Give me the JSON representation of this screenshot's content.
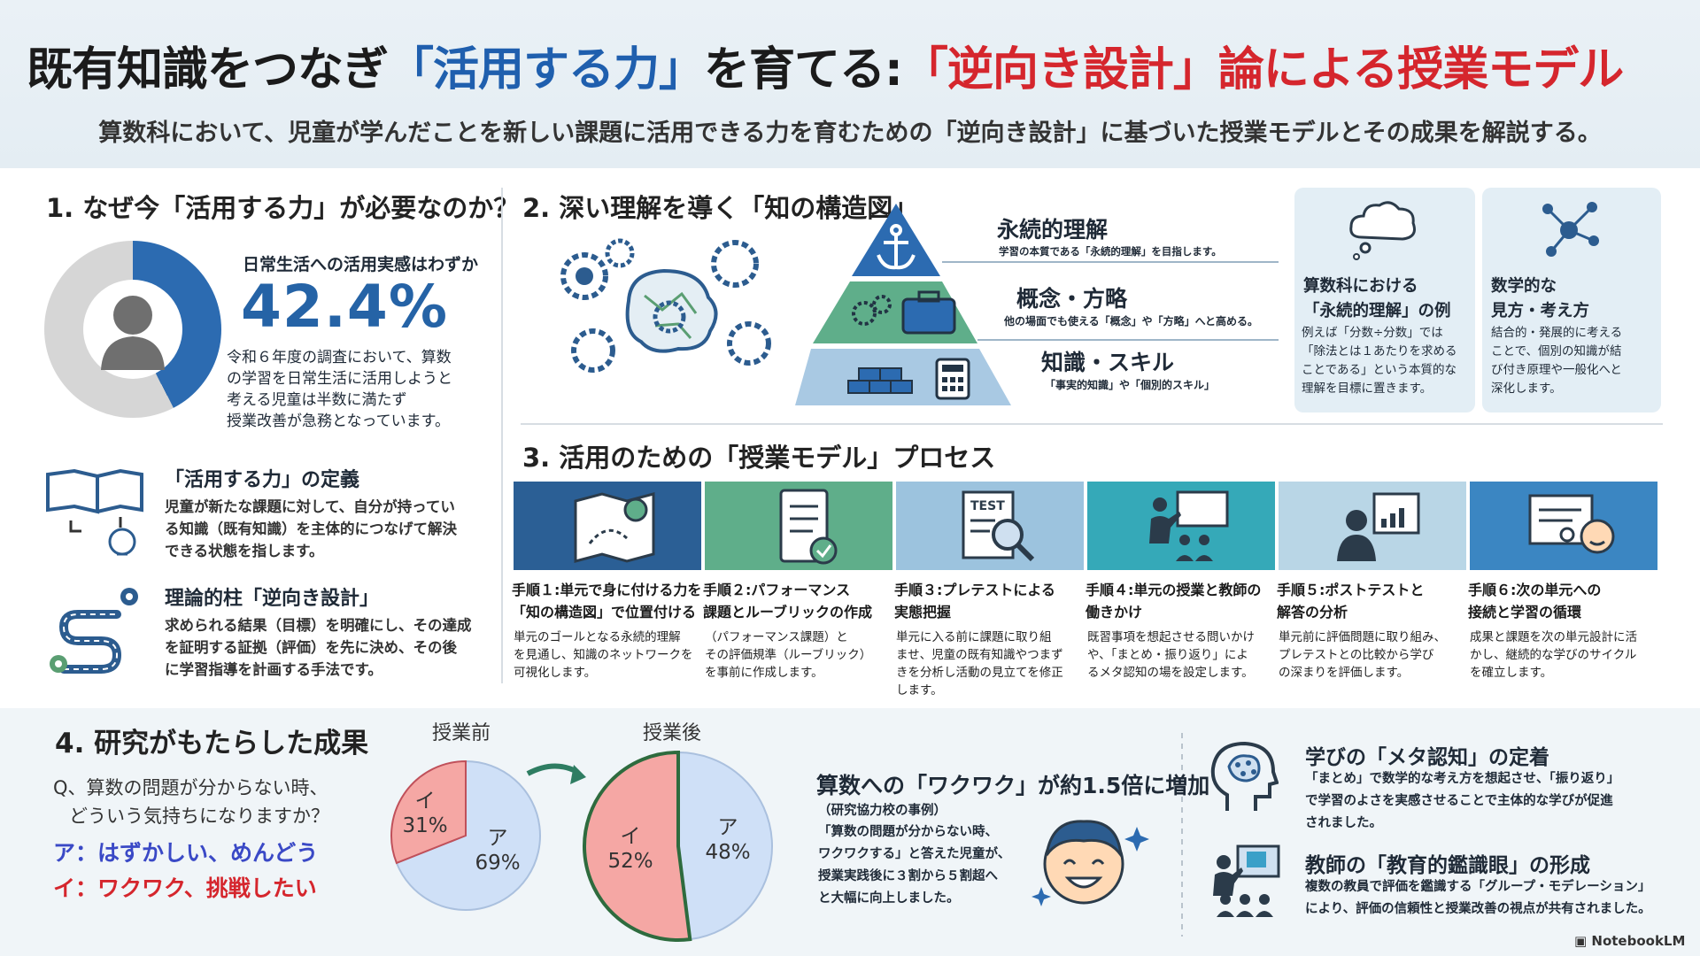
{
  "header": {
    "title_part1": "既有知識をつなぎ",
    "title_part2": "「活用する力」",
    "title_part3": "を育てる:",
    "title_part4": "「逆向き設計」",
    "title_part5": "論による授業モデル",
    "subtitle": "算数科において、児童が学んだことを新しい課題に活用できる力を育むための「逆向き設計」に基づいた授業モデルとその成果を解説する。"
  },
  "section1": {
    "heading": "1. なぜ今「活用する力」が必要なのか？",
    "stat_caption": "日常生活への活用実感はわずか",
    "stat_value": "42.4%",
    "stat_fraction": 0.424,
    "stat_text": [
      "令和６年度の調査において、算数",
      "の学習を日常生活に活用しようと",
      "考える児童は半数に満たず",
      "授業改善が急務となっています。"
    ],
    "definition_title": "「活用する力」の定義",
    "definition_text": [
      "児童が新たな課題に対して、自分が持ってい",
      "る知識（既有知識）を主体的につなげて解決",
      "できる状態を指します。"
    ],
    "theory_title": "理論的柱「逆向き設計」",
    "theory_text": [
      "求められる結果（目標）を明確にし、その達成",
      "を証明する証拠（評価）を先に決め、その後",
      "に学習指導を計画する手法です。"
    ]
  },
  "section2": {
    "heading": "2. 深い理解を導く「知の構造図」",
    "levels": [
      {
        "title": "永続的理解",
        "desc": "学習の本質である「永続的理解」を目指します。"
      },
      {
        "title": "概念・方略",
        "desc": "他の場面でも使える「概念」や「方略」へと高める。"
      },
      {
        "title": "知識・スキル",
        "desc": "「事実的知識」や「個別的スキル」"
      }
    ],
    "card1_title": [
      "算数科における",
      "「永続的理解」の例"
    ],
    "card1_text": [
      "例えば「分数÷分数」では",
      "「除法とは１あたりを求める",
      "ことである」という本質的な",
      "理解を目標に置きます。"
    ],
    "card2_title": [
      "数学的な",
      "見方・考え方"
    ],
    "card2_text": [
      "結合的・発展的に考える",
      "ことで、個別の知識が結",
      "び付き原理や一般化へと",
      "深化します。"
    ]
  },
  "section3": {
    "heading": "3. 活用のための「授業モデル」プロセス",
    "steps": [
      {
        "title": [
          "手順１:単元で身に付ける力を",
          "「知の構造図」で位置付ける"
        ],
        "body": [
          "単元のゴールとなる永続的理解",
          "を見通し、知識のネットワークを",
          "可視化します。"
        ],
        "color": "#2b5f95"
      },
      {
        "title": [
          "手順２:パフォーマンス",
          "課題とルーブリックの作成"
        ],
        "body": [
          "（パフォーマンス課題）と",
          "その評価規準（ルーブリック）",
          "を事前に作成します。"
        ],
        "color": "#5fae8a"
      },
      {
        "title": [
          "手順３:プレテストによる",
          "実態把握"
        ],
        "body": [
          "単元に入る前に課題に取り組",
          "ませ、児童の既有知識やつまず",
          "きを分析し活動の見立てを修正",
          "します。"
        ],
        "color": "#9cc3de"
      },
      {
        "title": [
          "手順４:単元の授業と教師の",
          "働きかけ"
        ],
        "body": [
          "既習事項を想起させる問いかけ",
          "や、「まとめ・振り返り」によ",
          "るメタ認知の場を設定します。"
        ],
        "color": "#35a9b8"
      },
      {
        "title": [
          "手順５:ポストテストと",
          "解答の分析"
        ],
        "body": [
          "単元前に評価問題に取り組み、",
          "プレテストとの比較から学び",
          "の深まりを評価します。"
        ],
        "color": "#b9d6e6"
      },
      {
        "title": [
          "手順６:次の単元への",
          "接続と学習の循環"
        ],
        "body": [
          "成果と課題を次の単元設計に活",
          "かし、継続的な学びのサイクル",
          "を確立します。"
        ],
        "color": "#3b86c2"
      }
    ]
  },
  "section4": {
    "heading": "4. 研究がもたらした成果",
    "question": [
      "Q、算数の問題が分からない時、",
      "どういう気持ちになりますか？"
    ],
    "option_a": "ア：はずかしい、めんどう",
    "option_i": "イ：ワクワク、挑戦したい",
    "before_label": "授業前",
    "after_label": "授業後",
    "increase_title": "算数への「ワクワク」が約1.5倍に増加",
    "increase_sub": "（研究協力校の事例）",
    "increase_text": [
      "「算数の問題が分からない時、",
      "ワクワクする」と答えた児童が、",
      "授業実践後に３割から５割超へ",
      "と大幅に向上しました。"
    ],
    "meta_title": "学びの「メタ認知」の定着",
    "meta_text": [
      "「まとめ」で数学的な考え方を想起させ、「振り返り」",
      "で学習のよさを実感させることで主体的な学びが促進",
      "されました。"
    ],
    "teacher_title": "教師の「教育的鑑識眼」の形成",
    "teacher_text": [
      "複数の教員で評価を鑑識する「グループ・モデレーション」",
      "により、評価の信頼性と授業改善の視点が共有されました。"
    ],
    "brand": "NotebookLM"
  },
  "chart_data": [
    {
      "type": "pie",
      "title": "授業前",
      "categories": [
        "ア",
        "イ"
      ],
      "values": [
        69,
        31
      ],
      "labels": [
        "ア\n69%",
        "イ\n31%"
      ]
    },
    {
      "type": "pie",
      "title": "授業後",
      "categories": [
        "ア",
        "イ"
      ],
      "values": [
        48,
        52
      ],
      "labels": [
        "ア\n48%",
        "イ\n52%"
      ]
    }
  ],
  "colors": {
    "blue": "#1f5fae",
    "red": "#d5262d",
    "pie_blue": "#cfe0f7",
    "pie_red": "#f5a7a4",
    "arrow": "#2e7d62"
  }
}
